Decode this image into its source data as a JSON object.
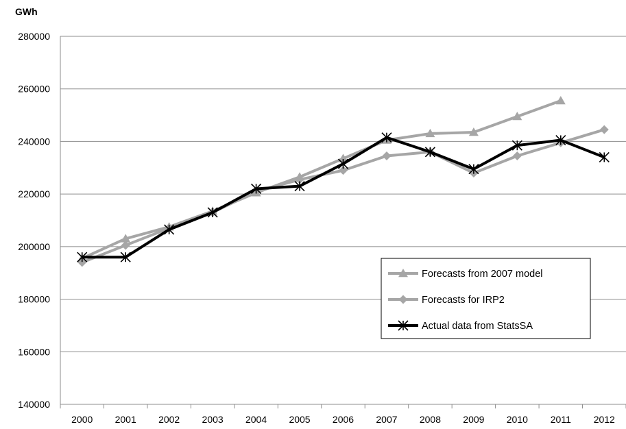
{
  "chart_data": {
    "type": "line",
    "ylabel": "GWh",
    "x": [
      "2000",
      "2001",
      "2002",
      "2003",
      "2004",
      "2005",
      "2006",
      "2007",
      "2008",
      "2009",
      "2010",
      "2011",
      "2012"
    ],
    "yticks": [
      "280000",
      "260000",
      "240000",
      "220000",
      "200000",
      "180000",
      "160000",
      "140000"
    ],
    "ylim": [
      140000,
      280000
    ],
    "grid": true,
    "legend_position": "bottom-right",
    "series": [
      {
        "name": "Forecasts from 2007 model",
        "color": "#a6a6a6",
        "marker": "triangle",
        "values": [
          195500,
          203000,
          207500,
          213500,
          220500,
          226500,
          233500,
          240500,
          243000,
          243500,
          249500,
          255500,
          null
        ]
      },
      {
        "name": "Forecasts for IRP2",
        "color": "#a6a6a6",
        "marker": "diamond",
        "values": [
          194000,
          200500,
          207000,
          213000,
          221000,
          225500,
          229000,
          234500,
          236000,
          228000,
          234500,
          239500,
          244500
        ]
      },
      {
        "name": "Actual data from StatsSA",
        "color": "#000000",
        "marker": "asterisk",
        "values": [
          196000,
          196000,
          206500,
          213000,
          222000,
          223000,
          231500,
          241500,
          236000,
          229500,
          238500,
          240500,
          234000
        ]
      }
    ]
  }
}
